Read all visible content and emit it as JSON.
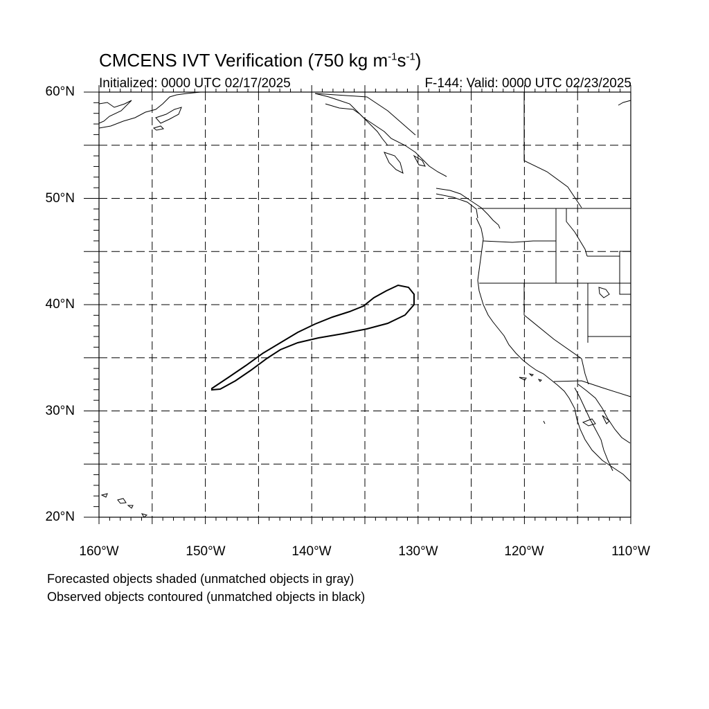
{
  "title": {
    "main": "CMCENS IVT Verification (750 kg m",
    "sup1": "-1",
    "mid": "s",
    "sup2": "-1",
    "end": ")"
  },
  "initialized": "Initialized: 0000 UTC 02/17/2025",
  "valid": "F-144: Valid: 0000 UTC 02/23/2025",
  "lat_labels": [
    "60°N",
    "50°N",
    "40°N",
    "30°N",
    "20°N"
  ],
  "lon_labels": [
    "160°W",
    "150°W",
    "140°W",
    "130°W",
    "120°W",
    "110°W"
  ],
  "notes": {
    "forecast": "Forecasted objects shaded (unmatched objects in gray)",
    "observed": "Observed objects contoured (unmatched objects in black)"
  },
  "map": {
    "lon_range": [
      -160,
      -110
    ],
    "lat_range": [
      20,
      60
    ],
    "grid_spacing_deg": 5,
    "grid_style": "dashed",
    "observed_object_color": "#000000",
    "coastline_color": "#000000"
  }
}
